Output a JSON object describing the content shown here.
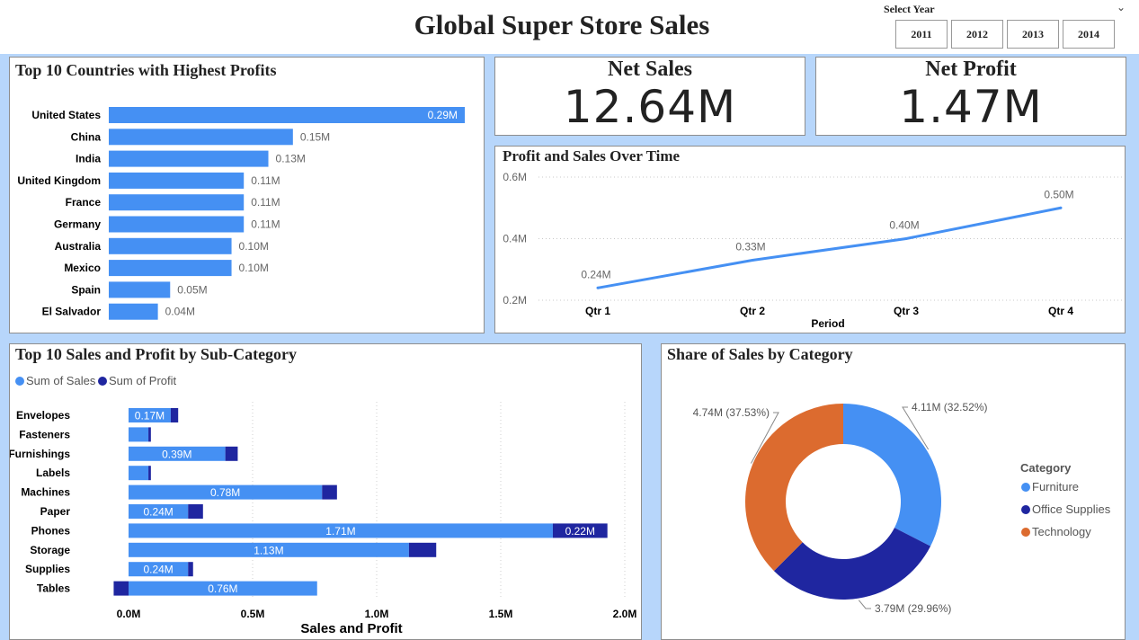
{
  "header": {
    "title": "Global Super Store Sales",
    "slicer_label": "Select Year",
    "years": [
      "2011",
      "2012",
      "2013",
      "2014"
    ]
  },
  "kpis": {
    "net_sales": {
      "label": "Net Sales",
      "value": "12.64M"
    },
    "net_profit": {
      "label": "Net Profit",
      "value": "1.47M"
    }
  },
  "colors": {
    "blue": "#4590f3",
    "navy": "#1f26a0",
    "orange": "#dc6b2f"
  },
  "icons": {
    "slicer_toggle": "chevron-down-icon"
  },
  "chart_data": [
    {
      "id": "countries",
      "type": "bar",
      "title": "Top 10 Countries with Highest Profits",
      "categories": [
        "United States",
        "China",
        "India",
        "United Kingdom",
        "France",
        "Germany",
        "Australia",
        "Mexico",
        "Spain",
        "El Salvador"
      ],
      "values": [
        0.29,
        0.15,
        0.13,
        0.11,
        0.11,
        0.11,
        0.1,
        0.1,
        0.05,
        0.04
      ],
      "labels": [
        "0.29M",
        "0.15M",
        "0.13M",
        "0.11M",
        "0.11M",
        "0.11M",
        "0.10M",
        "0.10M",
        "0.05M",
        "0.04M"
      ],
      "unit": "M",
      "orientation": "horizontal"
    },
    {
      "id": "time",
      "type": "line",
      "title": "Profit and Sales Over Time",
      "x": [
        "Qtr 1",
        "Qtr 2",
        "Qtr 3",
        "Qtr 4"
      ],
      "values": [
        0.24,
        0.33,
        0.4,
        0.5
      ],
      "labels": [
        "0.24M",
        "0.33M",
        "0.40M",
        "0.50M"
      ],
      "xlabel": "Period",
      "ylim": [
        0.2,
        0.6
      ],
      "yticks": [
        "0.2M",
        "0.4M",
        "0.6M"
      ],
      "grid": true
    },
    {
      "id": "subcat",
      "type": "bar",
      "stacked": true,
      "orientation": "horizontal",
      "title": "Top 10 Sales and Profit by Sub-Category",
      "categories": [
        "Envelopes",
        "Fasteners",
        "Furnishings",
        "Labels",
        "Machines",
        "Paper",
        "Phones",
        "Storage",
        "Supplies",
        "Tables"
      ],
      "series": [
        {
          "name": "Sum of Sales",
          "values": [
            0.17,
            0.08,
            0.39,
            0.08,
            0.78,
            0.24,
            1.71,
            1.13,
            0.24,
            0.76
          ],
          "labels": [
            "0.17M",
            "",
            "0.39M",
            "",
            "0.78M",
            "0.24M",
            "1.71M",
            "1.13M",
            "0.24M",
            "0.76M"
          ]
        },
        {
          "name": "Sum of Profit",
          "values": [
            0.03,
            0.01,
            0.05,
            0.01,
            0.06,
            0.06,
            0.22,
            0.11,
            0.02,
            -0.06
          ],
          "labels": [
            "",
            "",
            "",
            "",
            "",
            "",
            "0.22M",
            "",
            "",
            ""
          ]
        }
      ],
      "xlim": [
        0,
        2.0
      ],
      "xticks": [
        "0.0M",
        "0.5M",
        "1.0M",
        "1.5M",
        "2.0M"
      ],
      "xlabel": "Sales and Profit",
      "legend": "top-left"
    },
    {
      "id": "share",
      "type": "pie",
      "donut": true,
      "title": "Share of Sales by Category",
      "legend_title": "Category",
      "categories": [
        "Furniture",
        "Office Supplies",
        "Technology"
      ],
      "values": [
        4.11,
        3.79,
        4.74
      ],
      "percents": [
        32.52,
        29.96,
        37.53
      ],
      "labels": [
        "4.11M (32.52%)",
        "3.79M (29.96%)",
        "4.74M (37.53%)"
      ],
      "legend": "right"
    }
  ]
}
